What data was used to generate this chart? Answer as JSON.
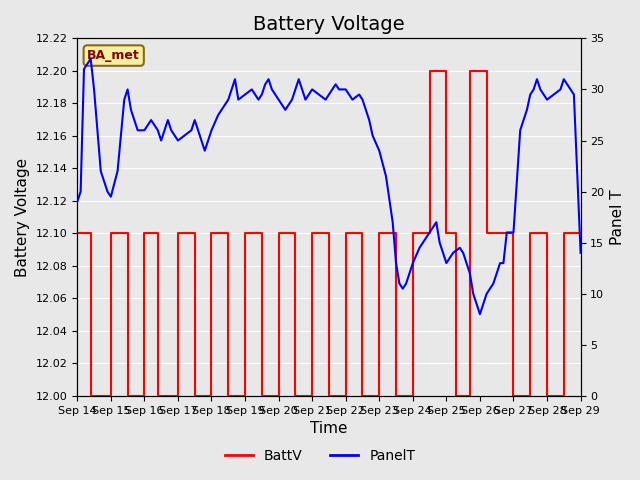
{
  "title": "Battery Voltage",
  "xlabel": "Time",
  "ylabel_left": "Battery Voltage",
  "ylabel_right": "Panel T",
  "left_ylim": [
    12.0,
    12.22
  ],
  "right_ylim": [
    0,
    35
  ],
  "left_yticks": [
    12.0,
    12.02,
    12.04,
    12.06,
    12.08,
    12.1,
    12.12,
    12.14,
    12.16,
    12.18,
    12.2,
    12.22
  ],
  "right_yticks": [
    0,
    5,
    10,
    15,
    20,
    25,
    30,
    35
  ],
  "xtick_labels": [
    "Sep 14",
    "Sep 15",
    "Sep 16",
    "Sep 17",
    "Sep 18",
    "Sep 19",
    "Sep 20",
    "Sep 21",
    "Sep 22",
    "Sep 23",
    "Sep 24",
    "Sep 25",
    "Sep 26",
    "Sep 27",
    "Sep 28",
    "Sep 29"
  ],
  "background_color": "#e8e8e8",
  "plot_bg_color": "#e8e8e8",
  "grid_color": "#ffffff",
  "ba_met_label": "BA_met",
  "ba_met_bg": "#f5f0a0",
  "ba_met_border": "#8b6914",
  "batt_color": "#ff0000",
  "panel_color": "#0000ff",
  "legend_batt": "BattV",
  "legend_panel": "PanelT",
  "batt_data": {
    "x": [
      0,
      0.4,
      0.4,
      1.0,
      1.0,
      1.5,
      1.5,
      2.0,
      2.0,
      2.4,
      2.4,
      3.0,
      3.0,
      3.5,
      3.5,
      4.0,
      4.0,
      4.5,
      4.5,
      5.0,
      5.0,
      5.5,
      5.5,
      6.0,
      6.0,
      6.5,
      6.5,
      7.0,
      7.0,
      7.5,
      7.5,
      8.0,
      8.0,
      8.5,
      8.5,
      9.0,
      9.0,
      9.5,
      9.5,
      10.0,
      10.0,
      10.5,
      10.5,
      11.0,
      11.0,
      11.3,
      11.3,
      11.7,
      11.7,
      12.2,
      12.2,
      13.0,
      13.0,
      13.5,
      13.5,
      14.0,
      14.0,
      14.5,
      14.5,
      15.0
    ],
    "y": [
      12.1,
      12.1,
      12.0,
      12.0,
      12.1,
      12.1,
      12.0,
      12.0,
      12.1,
      12.1,
      12.0,
      12.0,
      12.1,
      12.1,
      12.0,
      12.0,
      12.1,
      12.1,
      12.0,
      12.0,
      12.1,
      12.1,
      12.0,
      12.0,
      12.1,
      12.1,
      12.0,
      12.0,
      12.1,
      12.1,
      12.0,
      12.0,
      12.1,
      12.1,
      12.0,
      12.0,
      12.1,
      12.1,
      12.0,
      12.0,
      12.1,
      12.1,
      12.2,
      12.2,
      12.1,
      12.1,
      12.0,
      12.0,
      12.2,
      12.2,
      12.1,
      12.1,
      12.0,
      12.0,
      12.1,
      12.1,
      12.0,
      12.0,
      12.1,
      12.1
    ]
  },
  "panel_data": {
    "x": [
      0,
      0.1,
      0.2,
      0.4,
      0.5,
      0.7,
      0.9,
      1.0,
      1.2,
      1.4,
      1.5,
      1.6,
      1.8,
      2.0,
      2.2,
      2.4,
      2.5,
      2.6,
      2.7,
      2.8,
      3.0,
      3.2,
      3.4,
      3.5,
      3.6,
      3.7,
      3.8,
      4.0,
      4.2,
      4.4,
      4.5,
      4.6,
      4.7,
      4.8,
      5.0,
      5.2,
      5.4,
      5.5,
      5.6,
      5.7,
      5.8,
      6.0,
      6.2,
      6.4,
      6.5,
      6.6,
      6.7,
      6.8,
      7.0,
      7.2,
      7.4,
      7.5,
      7.6,
      7.7,
      7.8,
      8.0,
      8.2,
      8.4,
      8.5,
      8.6,
      8.7,
      8.8,
      9.0,
      9.2,
      9.4,
      9.5,
      9.6,
      9.7,
      9.8,
      10.0,
      10.2,
      10.4,
      10.5,
      10.6,
      10.7,
      10.8,
      11.0,
      11.2,
      11.4,
      11.5,
      11.6,
      11.7,
      11.8,
      12.0,
      12.2,
      12.4,
      12.5,
      12.6,
      12.7,
      12.8,
      13.0,
      13.2,
      13.4,
      13.5,
      13.6,
      13.7,
      13.8,
      14.0,
      14.2,
      14.4,
      14.5,
      14.6,
      14.7,
      14.8,
      15.0
    ],
    "y": [
      19,
      20,
      32,
      33,
      30,
      22,
      20,
      19.5,
      22,
      29,
      30,
      28,
      26,
      26,
      27,
      26,
      25,
      26,
      27,
      26,
      25,
      25.5,
      26,
      27,
      26,
      25,
      24,
      26,
      27.5,
      28.5,
      29,
      30,
      31,
      29,
      29.5,
      30,
      29,
      29.5,
      30.5,
      31,
      30,
      29,
      28,
      29,
      30,
      31,
      30,
      29,
      30,
      29.5,
      29,
      29.5,
      30,
      30.5,
      30,
      30,
      29,
      29.5,
      29,
      28,
      27,
      25.5,
      24,
      21.5,
      17,
      13,
      11,
      10.5,
      11,
      13,
      14.5,
      15.5,
      16,
      16.5,
      17,
      15,
      13,
      14,
      14.5,
      14,
      13,
      12,
      10,
      8,
      10,
      11,
      12,
      13,
      13,
      16,
      16,
      26,
      28,
      29.5,
      30,
      31,
      30,
      29,
      29.5,
      30,
      31,
      30.5,
      30,
      29.5,
      14
    ]
  },
  "num_days": 15,
  "title_fontsize": 14,
  "axis_label_fontsize": 11,
  "tick_fontsize": 8
}
